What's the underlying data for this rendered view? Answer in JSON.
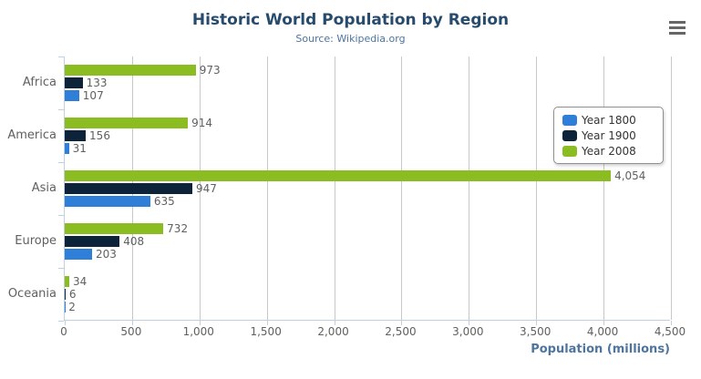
{
  "chart_data": {
    "type": "bar",
    "title": "Historic World Population by Region",
    "subtitle": "Source: Wikipedia.org",
    "categories": [
      "Africa",
      "America",
      "Asia",
      "Europe",
      "Oceania"
    ],
    "series": [
      {
        "name": "Year 1800",
        "color": "#2f7ed8",
        "values": [
          107,
          31,
          635,
          203,
          2
        ]
      },
      {
        "name": "Year 1900",
        "color": "#0d233a",
        "values": [
          133,
          156,
          947,
          408,
          6
        ]
      },
      {
        "name": "Year 2008",
        "color": "#8bbc21",
        "values": [
          973,
          914,
          4054,
          732,
          34
        ]
      }
    ],
    "data_labels": [
      [
        "107",
        "31",
        "635",
        "203",
        "2"
      ],
      [
        "133",
        "156",
        "947",
        "408",
        "6"
      ],
      [
        "973",
        "914",
        "4,054",
        "732",
        "34"
      ]
    ],
    "xlabel": "Population (millions)",
    "xlim": [
      0,
      4500
    ],
    "tick_interval": 500,
    "tick_labels": [
      "0",
      "500",
      "1,000",
      "1,500",
      "2,000",
      "2,500",
      "3,000",
      "3,500",
      "4,000",
      "4,500"
    ],
    "grid": true,
    "legend_position": "right",
    "legend_layout": "vertical"
  },
  "colors": {
    "title": "#274b6d",
    "subtitle": "#4d759e",
    "axis_title": "#4d759e",
    "axis_line": "#c0d0e0",
    "gridline": "#c8c8c8",
    "label_text": "#606060",
    "legend_text": "#333333",
    "menu_icon": "#666666"
  },
  "icons": {
    "menu": "hamburger-icon"
  }
}
